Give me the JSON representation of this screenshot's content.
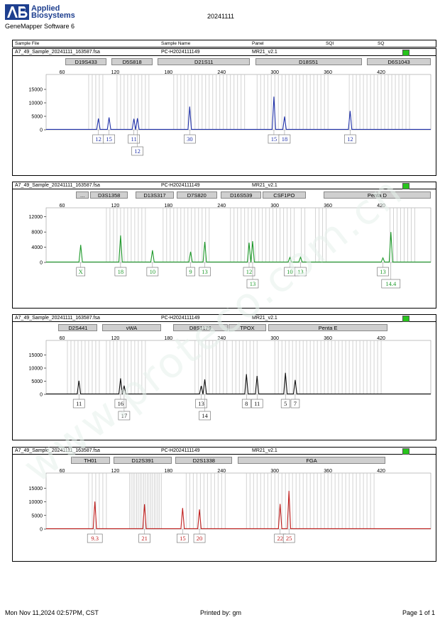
{
  "header": {
    "brand_line1": "Applied",
    "brand_line2": "Biosystems",
    "software": "GeneMapper Software 6",
    "run_id": "20241111",
    "col_sample_file": "Sample File",
    "col_sample_name": "Sample Name",
    "col_panel": "Panel",
    "col_sqi": "SQI",
    "col_sq": "SQ"
  },
  "footer": {
    "datetime": "Mon Nov 11,2024 02:57PM, CST",
    "printed_by": "Printed by: gm",
    "page": "Page 1 of 1"
  },
  "watermark": "www.proteco.com.cn",
  "colors": {
    "blue": "#2233aa",
    "green": "#1f9a2b",
    "black": "#111111",
    "red": "#c0201f",
    "qc_pass": "#27c41c"
  },
  "chart_data": [
    {
      "type": "line",
      "color": "#2233aa",
      "sample_file": "A7_49_Sample_20241111_163587.fsa",
      "sample_name": "PC-H2024111149",
      "panel": "MR21_v2.1",
      "xlim": [
        42,
        476
      ],
      "ylim": [
        0,
        20000
      ],
      "x_ticks": [
        60,
        120,
        180,
        240,
        300,
        360,
        420
      ],
      "y_ticks": [
        0,
        5000,
        10000,
        15000
      ],
      "markers": [
        {
          "name": "D19S433",
          "start": 64,
          "end": 110
        },
        {
          "name": "D5S818",
          "start": 116,
          "end": 162
        },
        {
          "name": "D21S11",
          "start": 168,
          "end": 272
        },
        {
          "name": "D18S51",
          "start": 278,
          "end": 398
        },
        {
          "name": "D6S1043",
          "start": 404,
          "end": 476
        }
      ],
      "bins": [
        90,
        94,
        98,
        102,
        106,
        122,
        126,
        130,
        134,
        138,
        142,
        146,
        150,
        154,
        158,
        186,
        190,
        194,
        198,
        202,
        206,
        210,
        214,
        218,
        222,
        226,
        230,
        234,
        238,
        242,
        246,
        250,
        254,
        258,
        262,
        266,
        280,
        284,
        288,
        292,
        296,
        300,
        304,
        308,
        312,
        316,
        320,
        324,
        328,
        332,
        336,
        340,
        344,
        348,
        352,
        356,
        360,
        384,
        388,
        392,
        396,
        400,
        404,
        408,
        412,
        416,
        420,
        424,
        428,
        432,
        436,
        440,
        444,
        448,
        452
      ],
      "peaks": [
        {
          "x": 101,
          "h": 4200,
          "label": "12",
          "row": 0
        },
        {
          "x": 113,
          "h": 4600,
          "label": "15",
          "row": 0
        },
        {
          "x": 141,
          "h": 4100,
          "label": "11",
          "row": 0
        },
        {
          "x": 145,
          "h": 4300,
          "label": "12",
          "row": 1
        },
        {
          "x": 204,
          "h": 8600,
          "label": "30",
          "row": 0
        },
        {
          "x": 299,
          "h": 12300,
          "label": "15",
          "row": 0
        },
        {
          "x": 311,
          "h": 4900,
          "label": "18",
          "row": 0
        },
        {
          "x": 385,
          "h": 7000,
          "label": "12",
          "row": 0
        }
      ]
    },
    {
      "type": "line",
      "color": "#1f9a2b",
      "sample_file": "A7_49_Sample_20241111_163587.fsa",
      "sample_name": "PC-H2024111149",
      "panel": "MR21_v2.1",
      "xlim": [
        42,
        476
      ],
      "ylim": [
        0,
        14000
      ],
      "x_ticks": [
        60,
        120,
        180,
        240,
        300,
        360,
        420
      ],
      "y_ticks": [
        0,
        4000,
        8000,
        12000
      ],
      "markers": [
        {
          "name": "...",
          "start": 76,
          "end": 90
        },
        {
          "name": "D3S1358",
          "start": 92,
          "end": 134
        },
        {
          "name": "D13S317",
          "start": 143,
          "end": 186
        },
        {
          "name": "D7S820",
          "start": 189,
          "end": 235
        },
        {
          "name": "D16S539",
          "start": 239,
          "end": 285
        },
        {
          "name": "CSF1PO",
          "start": 286,
          "end": 335
        },
        {
          "name": "Penta D",
          "start": 355,
          "end": 476
        }
      ],
      "bins": [
        110,
        114,
        118,
        122,
        126,
        130,
        134,
        138,
        142,
        146,
        150,
        154,
        174,
        178,
        182,
        186,
        190,
        194,
        198,
        202,
        206,
        210,
        214,
        218,
        222,
        226,
        250,
        254,
        258,
        262,
        266,
        270,
        274,
        278,
        282,
        286,
        290,
        294,
        298,
        302,
        306,
        310,
        314,
        318,
        322,
        330,
        334,
        346,
        350,
        354,
        358,
        430,
        434,
        438,
        442,
        446,
        450,
        454,
        458
      ],
      "peaks": [
        {
          "x": 81,
          "h": 4600,
          "label": "X",
          "row": 0
        },
        {
          "x": 126,
          "h": 7100,
          "label": "18",
          "row": 0
        },
        {
          "x": 162,
          "h": 3200,
          "label": "10",
          "row": 0
        },
        {
          "x": 205,
          "h": 2800,
          "label": "9",
          "row": 0
        },
        {
          "x": 221,
          "h": 5400,
          "label": "13",
          "row": 0
        },
        {
          "x": 271,
          "h": 5200,
          "label": "12",
          "row": 0
        },
        {
          "x": 275,
          "h": 5600,
          "label": "13",
          "row": 1
        },
        {
          "x": 317,
          "h": 1300,
          "label": "10",
          "row": 0
        },
        {
          "x": 329,
          "h": 1400,
          "label": "13",
          "row": 0
        },
        {
          "x": 422,
          "h": 1200,
          "label": "13",
          "row": 0
        },
        {
          "x": 431,
          "h": 8000,
          "label": "14.4",
          "row": 1
        }
      ]
    },
    {
      "type": "line",
      "color": "#111111",
      "sample_file": "A7_49_Sample_20241111_163587.fsa",
      "sample_name": "PC-H2024111149",
      "panel": "MR21_v2.1",
      "xlim": [
        42,
        476
      ],
      "ylim": [
        0,
        20000
      ],
      "x_ticks": [
        60,
        120,
        180,
        240,
        300,
        360,
        420
      ],
      "y_ticks": [
        0,
        5000,
        10000,
        15000
      ],
      "markers": [
        {
          "name": "D2S441",
          "start": 56,
          "end": 100
        },
        {
          "name": "vWA",
          "start": 105,
          "end": 172
        },
        {
          "name": "D8S1179",
          "start": 185,
          "end": 247
        },
        {
          "name": "TPOX",
          "start": 248,
          "end": 290
        },
        {
          "name": "Penta E",
          "start": 293,
          "end": 427
        }
      ],
      "bins": [
        66,
        70,
        74,
        78,
        82,
        86,
        90,
        94,
        98,
        102,
        110,
        114,
        118,
        122,
        126,
        130,
        134,
        138,
        142,
        146,
        150,
        154,
        210,
        214,
        218,
        222,
        226,
        230,
        234,
        238,
        242,
        246,
        252,
        256,
        260,
        264,
        268,
        272,
        276,
        280,
        300,
        304,
        308,
        312,
        316,
        320,
        324,
        328,
        332,
        336,
        340,
        344,
        348,
        352,
        356,
        360,
        364,
        368,
        372,
        376,
        380,
        384,
        388,
        392,
        396,
        400,
        404,
        408,
        412,
        416,
        420
      ],
      "peaks": [
        {
          "x": 79,
          "h": 5200,
          "label": "11",
          "row": 0
        },
        {
          "x": 126,
          "h": 6100,
          "label": "16",
          "row": 0
        },
        {
          "x": 130,
          "h": 3300,
          "label": "17",
          "row": 1
        },
        {
          "x": 217,
          "h": 3200,
          "label": "13",
          "row": 0
        },
        {
          "x": 221,
          "h": 5700,
          "label": "14",
          "row": 1
        },
        {
          "x": 268,
          "h": 7700,
          "label": "8",
          "row": 0
        },
        {
          "x": 280,
          "h": 7000,
          "label": "11",
          "row": 0
        },
        {
          "x": 312,
          "h": 8200,
          "label": "5",
          "row": 0
        },
        {
          "x": 323,
          "h": 5500,
          "label": "7",
          "row": 0
        }
      ]
    },
    {
      "type": "line",
      "color": "#c0201f",
      "sample_file": "A7_49_Sample_20241111_163587.fsa",
      "sample_name": "PC-H2024111149",
      "panel": "MR21_v2.1",
      "xlim": [
        42,
        476
      ],
      "ylim": [
        0,
        20000
      ],
      "x_ticks": [
        60,
        120,
        180,
        240,
        300,
        360,
        420
      ],
      "y_ticks": [
        0,
        5000,
        10000,
        15000
      ],
      "markers": [
        {
          "name": "TH01",
          "start": 70,
          "end": 114
        },
        {
          "name": "D12S391",
          "start": 118,
          "end": 184
        },
        {
          "name": "D2S1338",
          "start": 188,
          "end": 252
        },
        {
          "name": "FGA",
          "start": 258,
          "end": 425
        }
      ],
      "bins": [
        90,
        94,
        98,
        102,
        106,
        110,
        136,
        138,
        140,
        142,
        144,
        146,
        148,
        150,
        152,
        154,
        156,
        158,
        160,
        162,
        164,
        166,
        168,
        170,
        172,
        200,
        204,
        208,
        212,
        216,
        220,
        224,
        228,
        232,
        236,
        240,
        244,
        268,
        272,
        276,
        280,
        284,
        288,
        292,
        296,
        300,
        304,
        308,
        312,
        316,
        320,
        324,
        328,
        332,
        336,
        340,
        344,
        348,
        352,
        356,
        360,
        364,
        368,
        372,
        376,
        380,
        384,
        388,
        392,
        396,
        400,
        404,
        408,
        412
      ],
      "peaks": [
        {
          "x": 97,
          "h": 10100,
          "label": "9.3",
          "row": 0
        },
        {
          "x": 153,
          "h": 9100,
          "label": "21",
          "row": 0
        },
        {
          "x": 196,
          "h": 7700,
          "label": "15",
          "row": 0
        },
        {
          "x": 215,
          "h": 7200,
          "label": "20",
          "row": 0
        },
        {
          "x": 306,
          "h": 9200,
          "label": "22",
          "row": 0
        },
        {
          "x": 316,
          "h": 14000,
          "label": "25",
          "row": 0
        }
      ]
    }
  ]
}
